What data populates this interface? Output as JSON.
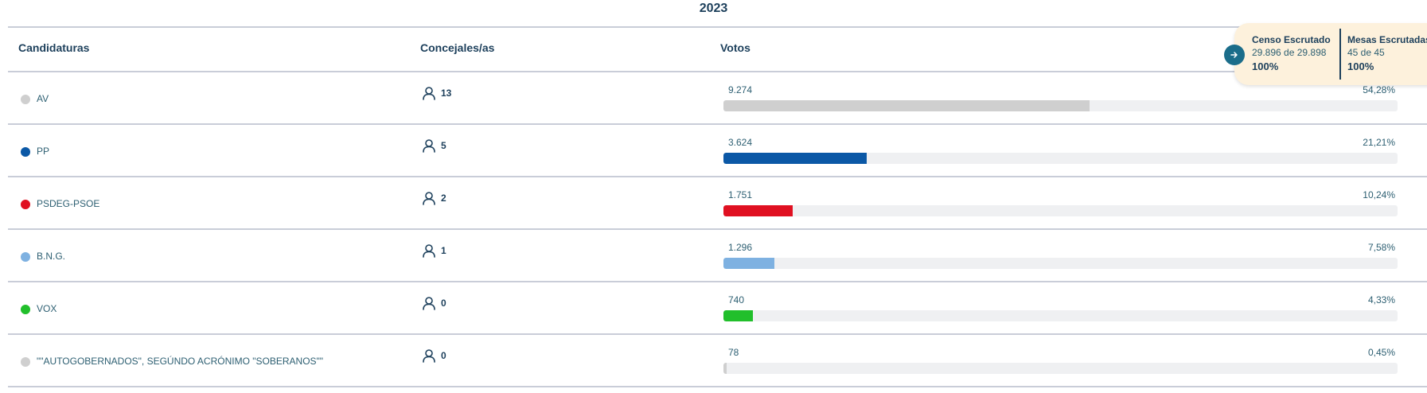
{
  "year": "2023",
  "headers": {
    "candidates": "Candidaturas",
    "seats": "Concejales/as",
    "votes": "Votos"
  },
  "rows": [
    {
      "name": "AV",
      "color": "#cfcfcf",
      "seats": "13",
      "votes": "9.274",
      "pct": "54,28%",
      "share": 0.5428
    },
    {
      "name": "PP",
      "color": "#0b58a6",
      "seats": "5",
      "votes": "3.624",
      "pct": "21,21%",
      "share": 0.2121
    },
    {
      "name": "PSDEG-PSOE",
      "color": "#e01021",
      "seats": "2",
      "votes": "1.751",
      "pct": "10,24%",
      "share": 0.1024
    },
    {
      "name": "B.N.G.",
      "color": "#7eb1e1",
      "seats": "1",
      "votes": "1.296",
      "pct": "7,58%",
      "share": 0.0758
    },
    {
      "name": "VOX",
      "color": "#21bf2b",
      "seats": "0",
      "votes": "740",
      "pct": "4,33%",
      "share": 0.0433
    },
    {
      "name": "\"\"AUTOGOBERNADOS\", SEGÚNDO ACRÓNIMO \"SOBERANOS\"\"",
      "color": "#cfcfcf",
      "seats": "0",
      "votes": "78",
      "pct": "0,45%",
      "share": 0.0045
    }
  ],
  "scrutiny": {
    "census_title": "Censo Escrutado",
    "census_detail": "29.896 de 29.898",
    "census_pct": "100%",
    "tables_title": "Mesas Escrutadas",
    "tables_detail": "45 de 45",
    "tables_pct": "100%",
    "button_icon": "arrow-right-icon",
    "button_color": "#1b6d8a",
    "panel_color": "#fdf1dc"
  },
  "icons": {
    "seats_icon": "person-icon"
  }
}
